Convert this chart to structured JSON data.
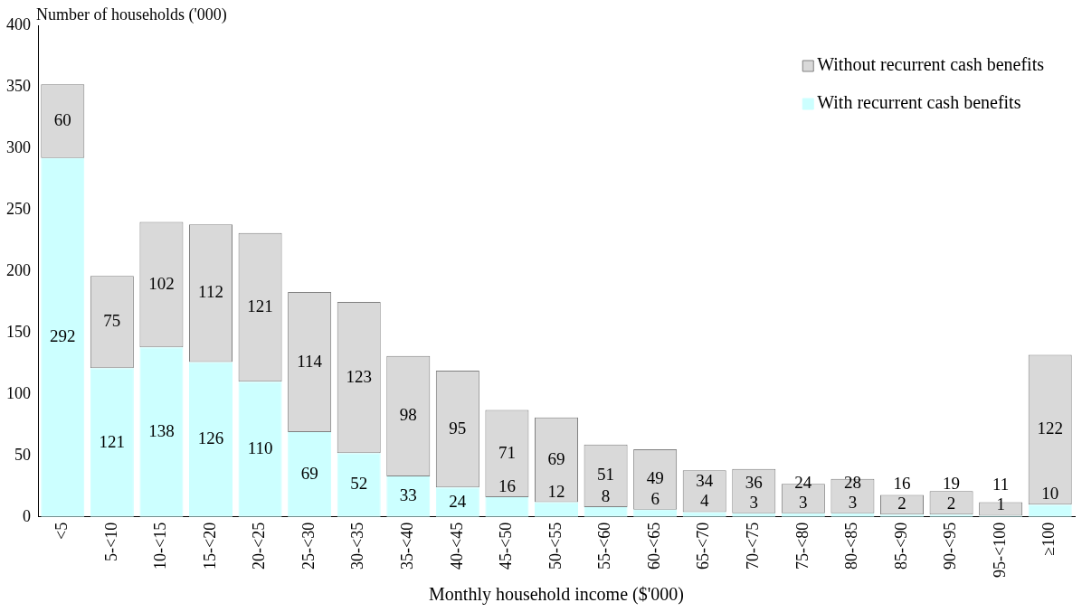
{
  "chart_data": {
    "type": "bar",
    "stacked": true,
    "ylabel": "Number of households ('000)",
    "xlabel": "Monthly household income ($'000)",
    "categories": [
      "<5",
      "5-<10",
      "10-<15",
      "15-<20",
      "20-<25",
      "25-<30",
      "30-<35",
      "35-<40",
      "40-<45",
      "45-<50",
      "50-<55",
      "55-<60",
      "60-<65",
      "65-<70",
      "70-<75",
      "75-<80",
      "80-<85",
      "85-<90",
      "90-<95",
      "95-<100",
      "≥100"
    ],
    "series": [
      {
        "name": "With recurrent cash benefits",
        "color": "#ccffff",
        "values": [
          292,
          121,
          138,
          126,
          110,
          69,
          52,
          33,
          24,
          16,
          12,
          8,
          6,
          4,
          3,
          3,
          3,
          2,
          2,
          1,
          10
        ]
      },
      {
        "name": "Without recurrent cash benefits",
        "color": "#d9d9d9",
        "values": [
          60,
          75,
          102,
          112,
          121,
          114,
          123,
          98,
          95,
          71,
          69,
          51,
          49,
          34,
          36,
          24,
          28,
          16,
          19,
          11,
          122
        ]
      }
    ],
    "ylim": [
      0,
      400
    ],
    "yticks": [
      0,
      50,
      100,
      150,
      200,
      250,
      300,
      350,
      400
    ],
    "legend": "top right",
    "data_labels": true
  }
}
